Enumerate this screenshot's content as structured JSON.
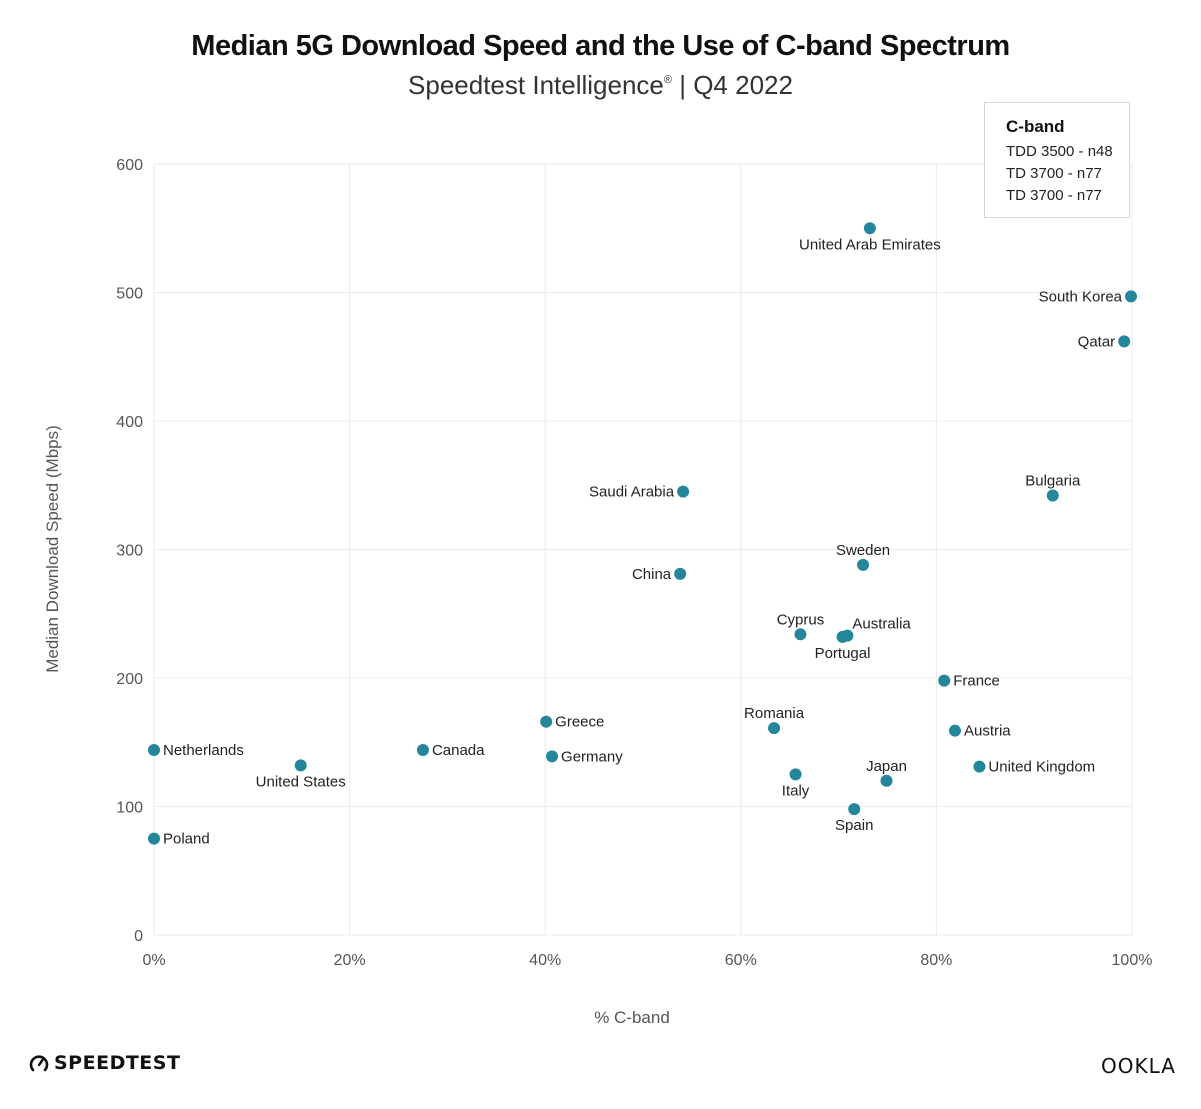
{
  "header": {
    "title": "Median 5G Download Speed and the Use of C-band Spectrum",
    "subtitle_main": "Speedtest Intelligence",
    "subtitle_reg": "®",
    "subtitle_tail": " | Q4 2022"
  },
  "legend": {
    "title": "C-band",
    "items": [
      "TDD 3500 - n48",
      "TD 3700 - n77",
      "TD 3700 - n77"
    ]
  },
  "footer": {
    "left_logo": "SPEEDTEST",
    "right_logo": "OOKLA"
  },
  "colors": {
    "point": "#23869a",
    "grid": "#ebebeb",
    "text": "#222222",
    "tick": "#555555"
  },
  "chart_data": {
    "type": "scatter",
    "title": "Median 5G Download Speed and the Use of C-band Spectrum",
    "subtitle": "Speedtest Intelligence® | Q4 2022",
    "xlabel": "% C-band",
    "ylabel": "Median Download Speed (Mbps)",
    "xlim": [
      0,
      100
    ],
    "ylim": [
      0,
      600
    ],
    "xticks": [
      0,
      20,
      40,
      60,
      80,
      100
    ],
    "xtick_labels": [
      "0%",
      "20%",
      "40%",
      "60%",
      "80%",
      "100%"
    ],
    "yticks": [
      0,
      100,
      200,
      300,
      400,
      500,
      600
    ],
    "ytick_labels": [
      "0",
      "100",
      "200",
      "300",
      "400",
      "500",
      "600"
    ],
    "grid": true,
    "legend_position": "top-right",
    "points": [
      {
        "label": "United Arab Emirates",
        "x": 73.2,
        "y": 550,
        "label_pos": "below"
      },
      {
        "label": "South Korea",
        "x": 99.9,
        "y": 497,
        "label_pos": "left"
      },
      {
        "label": "Qatar",
        "x": 99.2,
        "y": 462,
        "label_pos": "left"
      },
      {
        "label": "Saudi Arabia",
        "x": 54.1,
        "y": 345,
        "label_pos": "left"
      },
      {
        "label": "Bulgaria",
        "x": 91.9,
        "y": 342,
        "label_pos": "above"
      },
      {
        "label": "Sweden",
        "x": 72.5,
        "y": 288,
        "label_pos": "above"
      },
      {
        "label": "China",
        "x": 53.8,
        "y": 281,
        "label_pos": "left"
      },
      {
        "label": "Cyprus",
        "x": 66.1,
        "y": 234,
        "label_pos": "above"
      },
      {
        "label": "Australia",
        "x": 70.9,
        "y": 233,
        "label_pos": "above-right"
      },
      {
        "label": "Portugal",
        "x": 70.4,
        "y": 232,
        "label_pos": "below"
      },
      {
        "label": "France",
        "x": 80.8,
        "y": 198,
        "label_pos": "right"
      },
      {
        "label": "Greece",
        "x": 40.1,
        "y": 166,
        "label_pos": "right"
      },
      {
        "label": "Romania",
        "x": 63.4,
        "y": 161,
        "label_pos": "above"
      },
      {
        "label": "Austria",
        "x": 81.9,
        "y": 159,
        "label_pos": "right"
      },
      {
        "label": "Netherlands",
        "x": 0,
        "y": 144,
        "label_pos": "right"
      },
      {
        "label": "Canada",
        "x": 27.5,
        "y": 144,
        "label_pos": "right"
      },
      {
        "label": "Germany",
        "x": 40.7,
        "y": 139,
        "label_pos": "right"
      },
      {
        "label": "United States",
        "x": 15.0,
        "y": 132,
        "label_pos": "below"
      },
      {
        "label": "United Kingdom",
        "x": 84.4,
        "y": 131,
        "label_pos": "right"
      },
      {
        "label": "Italy",
        "x": 65.6,
        "y": 125,
        "label_pos": "below"
      },
      {
        "label": "Japan",
        "x": 74.9,
        "y": 120,
        "label_pos": "above"
      },
      {
        "label": "Spain",
        "x": 71.6,
        "y": 98,
        "label_pos": "below"
      },
      {
        "label": "Poland",
        "x": 0,
        "y": 75,
        "label_pos": "right"
      }
    ]
  }
}
